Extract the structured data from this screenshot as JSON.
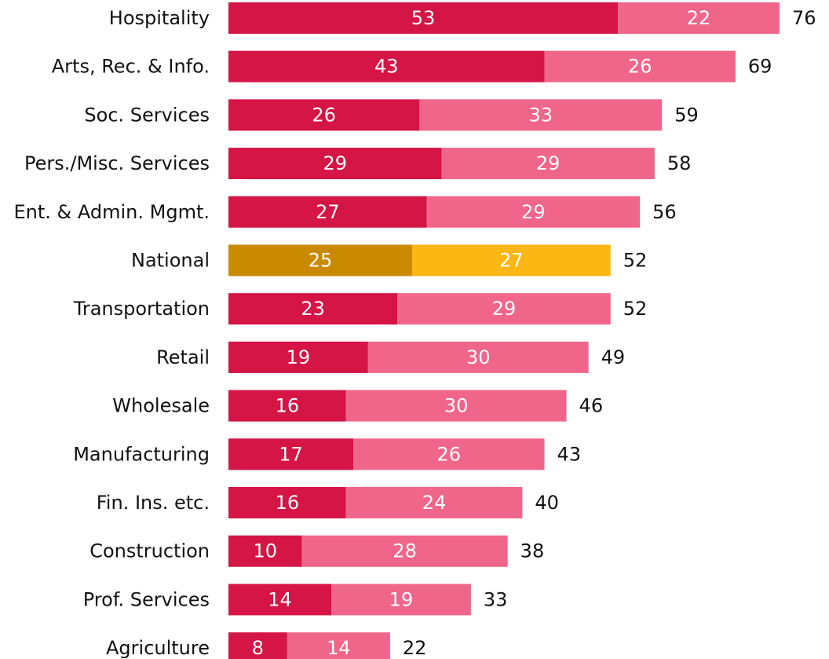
{
  "chart_data": {
    "type": "bar",
    "orientation": "horizontal",
    "stacked": true,
    "categories": [
      "Hospitality",
      "Arts, Rec. & Info.",
      "Soc. Services",
      "Pers./Misc. Services",
      "Ent. & Admin. Mgmt.",
      "National",
      "Transportation",
      "Retail",
      "Wholesale",
      "Manufacturing",
      "Fin. Ins. etc.",
      "Construction",
      "Prof. Services",
      "Agriculture"
    ],
    "series": [
      {
        "values": [
          53,
          43,
          26,
          29,
          27,
          25,
          23,
          19,
          16,
          17,
          16,
          10,
          14,
          8
        ],
        "color": "#D41545",
        "highlight_color": "#C98A00"
      },
      {
        "values": [
          22,
          26,
          33,
          29,
          29,
          27,
          29,
          30,
          30,
          26,
          24,
          28,
          19,
          14
        ],
        "color": "#F0668A",
        "highlight_color": "#FDB715"
      }
    ],
    "totals": [
      76,
      69,
      59,
      58,
      56,
      52,
      52,
      49,
      46,
      43,
      40,
      38,
      33,
      22
    ],
    "highlight_category": "National",
    "xlim": [
      0,
      76
    ],
    "grid": false,
    "title": "",
    "xlabel": "",
    "ylabel": ""
  }
}
